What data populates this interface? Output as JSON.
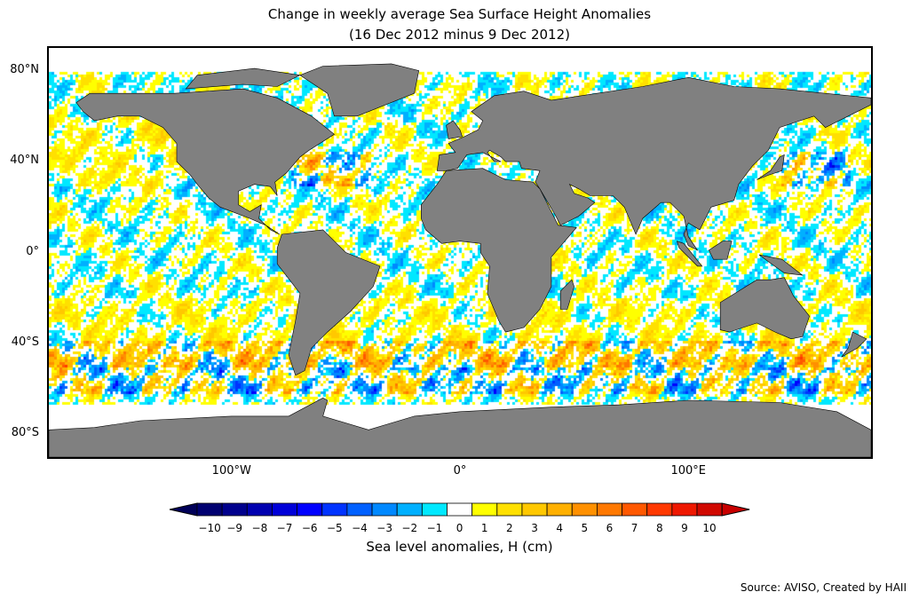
{
  "title": {
    "line1": "Change in weekly average Sea Surface Height Anomalies",
    "line2": "(16 Dec 2012 minus 9 Dec 2012)"
  },
  "axes": {
    "y_ticks": [
      {
        "label": "80°N",
        "lat": 80
      },
      {
        "label": "40°N",
        "lat": 40
      },
      {
        "label": "0°",
        "lat": 0
      },
      {
        "label": "40°S",
        "lat": -40
      },
      {
        "label": "80°S",
        "lat": -80
      }
    ],
    "x_ticks": [
      {
        "label": "100°W",
        "lon": -100
      },
      {
        "label": "0°",
        "lon": 0
      },
      {
        "label": "100°E",
        "lon": 100
      }
    ],
    "lon_range": [
      -180,
      180
    ],
    "lat_range": [
      -90,
      90
    ]
  },
  "colorbar": {
    "label": "Sea level anomalies, H (cm)",
    "ticks": [
      "−10",
      "−9",
      "−8",
      "−7",
      "−6",
      "−5",
      "−4",
      "−3",
      "−2",
      "−1",
      "0",
      "1",
      "2",
      "3",
      "4",
      "5",
      "6",
      "7",
      "8",
      "9",
      "10"
    ],
    "colors": [
      "#000070",
      "#00008c",
      "#0000b0",
      "#0000d8",
      "#0000ff",
      "#0033ff",
      "#0060ff",
      "#0088ff",
      "#00b0ff",
      "#00e8ff",
      "#ffffff",
      "#ffff00",
      "#ffe000",
      "#ffc800",
      "#ffb000",
      "#ff9000",
      "#ff7800",
      "#ff5800",
      "#ff3800",
      "#ee1800",
      "#d00800"
    ],
    "under_color": "#000058",
    "over_color": "#c80000",
    "land_color": "#808080"
  },
  "source": "Source: AVISO, Created by HAII"
}
